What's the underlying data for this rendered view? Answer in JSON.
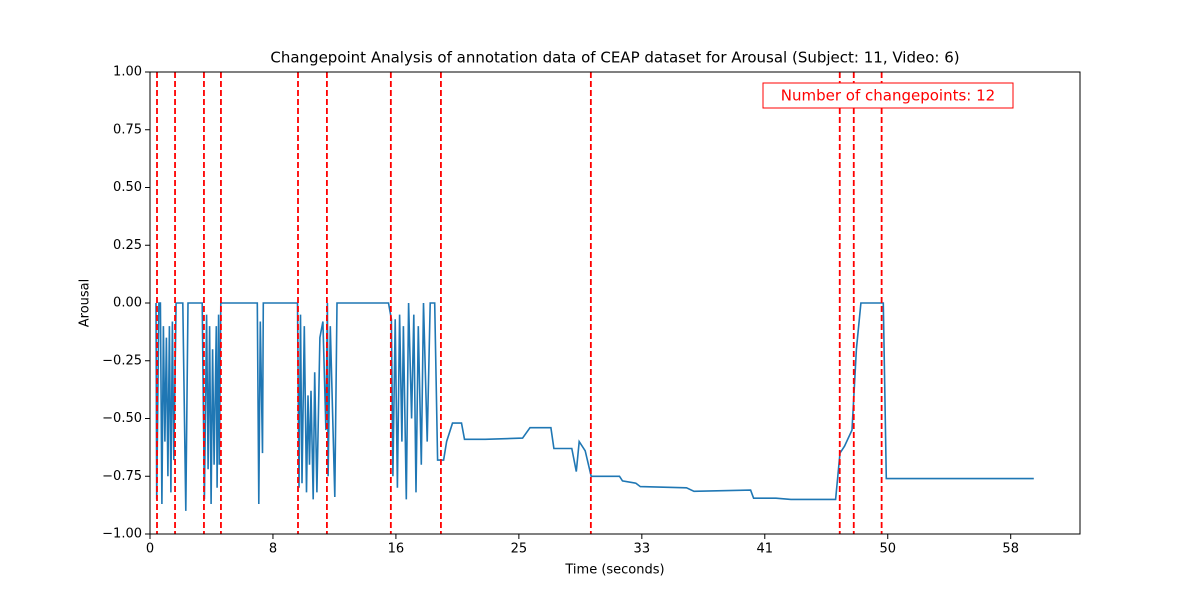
{
  "chart_data": {
    "type": "line",
    "title": "Changepoint Analysis of annotation data of CEAP dataset for Arousal (Subject: 11, Video: 6)",
    "x_label": "Time (seconds)",
    "y_label": "Arousal",
    "annotation": "Number of changepoints: 12",
    "color": "#1f77b4",
    "changepoint_color": "#ff0000",
    "xlim": [
      0,
      62.4
    ],
    "ylim": [
      -1,
      1
    ],
    "xticks": [
      0,
      {
        "value": 8.25,
        "label": "8"
      },
      {
        "value": 16.5,
        "label": "16"
      },
      {
        "value": 24.75,
        "label": "25"
      },
      33,
      {
        "value": 41.25,
        "label": "41"
      },
      {
        "value": 49.5,
        "label": "50"
      },
      {
        "value": 57.75,
        "label": "58"
      }
    ],
    "yticks": [
      {
        "value": -1,
        "label": "−1.00"
      },
      {
        "value": -0.75,
        "label": "−0.75"
      },
      {
        "value": -0.5,
        "label": "−0.50"
      },
      {
        "value": -0.25,
        "label": "−0.25"
      },
      {
        "value": 0,
        "label": "0.00"
      },
      {
        "value": 0.25,
        "label": "0.25"
      },
      {
        "value": 0.5,
        "label": "0.50"
      },
      {
        "value": 0.75,
        "label": "0.75"
      },
      {
        "value": 1,
        "label": "1.00"
      }
    ],
    "changepoints": [
      0.47,
      1.68,
      3.62,
      4.76,
      9.93,
      11.87,
      16.16,
      19.52,
      29.58,
      46.28,
      47.22,
      49.09
    ],
    "x": [
      0.4,
      0.45,
      0.6,
      0.7,
      0.8,
      0.9,
      1.0,
      1.1,
      1.2,
      1.3,
      1.4,
      1.5,
      1.6,
      1.75,
      2.2,
      2.4,
      2.55,
      3.5,
      3.65,
      3.8,
      3.9,
      4.0,
      4.1,
      4.2,
      4.3,
      4.45,
      4.5,
      4.6,
      4.65,
      4.75,
      7.2,
      7.3,
      7.4,
      7.55,
      7.6,
      9.9,
      10.0,
      10.1,
      10.2,
      10.35,
      10.5,
      10.6,
      10.7,
      10.8,
      10.95,
      11.05,
      11.2,
      11.4,
      11.6,
      11.8,
      11.9,
      11.95,
      12.1,
      12.4,
      12.55,
      16.0,
      16.2,
      16.3,
      16.45,
      16.6,
      16.75,
      16.9,
      17.0,
      17.2,
      17.35,
      17.55,
      17.7,
      17.85,
      18.0,
      18.2,
      18.35,
      18.6,
      18.8,
      19.1,
      19.3,
      19.7,
      19.9,
      20.3,
      20.9,
      21.1,
      22.5,
      25,
      25.5,
      26.9,
      27.1,
      28.3,
      28.6,
      28.8,
      29.2,
      29.6,
      31.5,
      31.7,
      32.6,
      32.9,
      36,
      36.5,
      40.3,
      40.5,
      42,
      43,
      46.0,
      46.3,
      46.6,
      47.1,
      47.4,
      47.7,
      49.2,
      49.4,
      59.3
    ],
    "values": [
      0,
      -0.85,
      0,
      0,
      -0.87,
      -0.1,
      -0.6,
      -0.15,
      -0.75,
      -0.1,
      -0.82,
      -0.08,
      -0.68,
      0,
      0,
      -0.9,
      0,
      0,
      -0.85,
      -0.05,
      -0.72,
      -0.1,
      -0.87,
      -0.2,
      -0.7,
      -0.1,
      -0.8,
      -0.05,
      -0.7,
      0,
      0,
      -0.87,
      -0.08,
      -0.65,
      0,
      0,
      -0.8,
      -0.05,
      -0.78,
      -0.1,
      -0.82,
      -0.4,
      -0.7,
      -0.38,
      -0.85,
      -0.3,
      -0.82,
      -0.15,
      -0.08,
      -0.55,
      0,
      -0.75,
      -0.1,
      -0.84,
      0,
      0,
      -0.07,
      -0.75,
      -0.07,
      -0.8,
      -0.05,
      -0.6,
      -0.1,
      -0.85,
      0,
      -0.5,
      -0.05,
      -0.82,
      -0.1,
      -0.7,
      0,
      -0.6,
      0,
      0,
      -0.68,
      -0.68,
      -0.6,
      -0.52,
      -0.52,
      -0.59,
      -0.59,
      -0.585,
      -0.54,
      -0.54,
      -0.63,
      -0.63,
      -0.73,
      -0.6,
      -0.64,
      -0.75,
      -0.75,
      -0.77,
      -0.78,
      -0.795,
      -0.8,
      -0.815,
      -0.81,
      -0.845,
      -0.845,
      -0.85,
      -0.85,
      -0.65,
      -0.62,
      -0.55,
      -0.2,
      0,
      0,
      -0.76,
      -0.76
    ]
  }
}
